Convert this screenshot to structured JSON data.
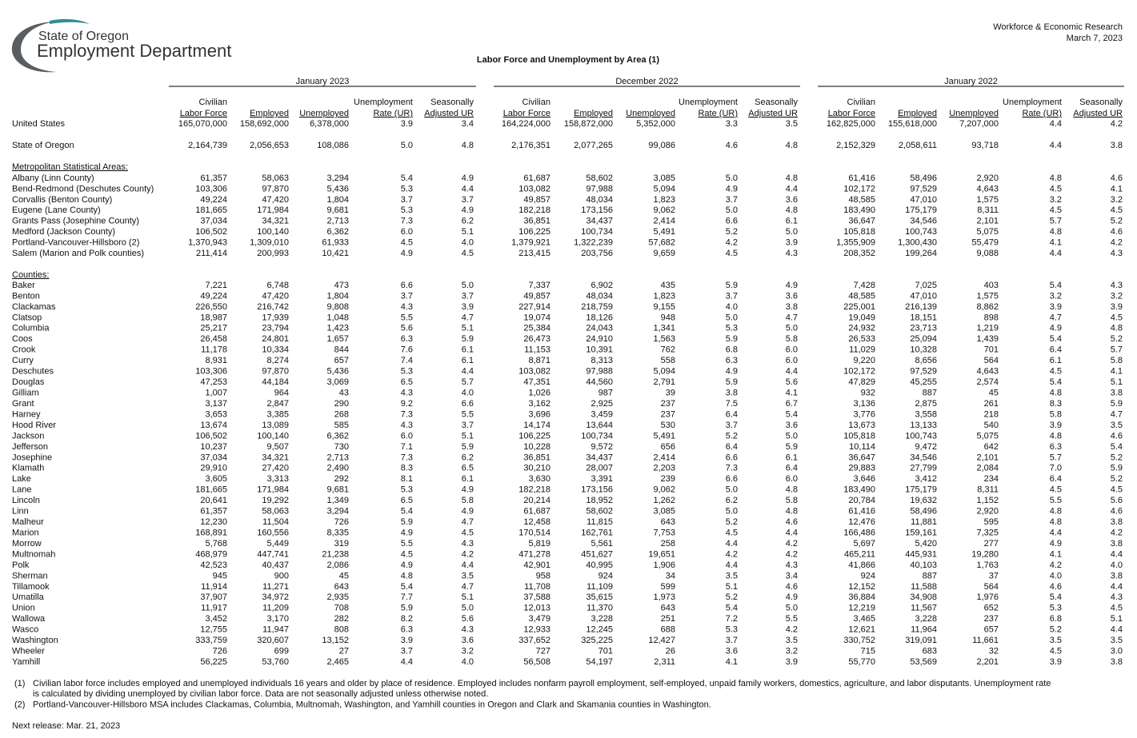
{
  "header": {
    "org_line1": "State of Oregon",
    "org_line2": "Employment Department",
    "right_line1": "Workforce & Economic Research",
    "right_line2": "March 7, 2023",
    "title": "Labor Force and Unemployment by Area (1)"
  },
  "table": {
    "periods": [
      "January 2023",
      "December 2022",
      "January 2022"
    ],
    "columns": [
      {
        "line1": "Civilian",
        "line2": "Labor Force"
      },
      {
        "line2": "Employed"
      },
      {
        "line2": "Unemployed"
      },
      {
        "line1": "Unemployment",
        "line2": "Rate (UR)"
      },
      {
        "line1": "Seasonally",
        "line2": "Adjusted UR"
      }
    ],
    "rows": [
      {
        "name": "United States",
        "cells": [
          "165,070,000",
          "158,692,000",
          "6,378,000",
          "3.9",
          "3.4",
          "164,224,000",
          "158,872,000",
          "5,352,000",
          "3.3",
          "3.5",
          "162,825,000",
          "155,618,000",
          "7,207,000",
          "4.4",
          "4.2"
        ]
      },
      {
        "name": "State of Oregon",
        "cells": [
          "2,164,739",
          "2,056,653",
          "108,086",
          "5.0",
          "4.8",
          "2,176,351",
          "2,077,265",
          "99,086",
          "4.6",
          "4.8",
          "2,152,329",
          "2,058,611",
          "93,718",
          "4.4",
          "3.8"
        ]
      }
    ],
    "msa": {
      "heading": "Metropolitan Statistical Areas:",
      "rows": [
        {
          "name": "Albany (Linn County)",
          "cells": [
            "61,357",
            "58,063",
            "3,294",
            "5.4",
            "4.9",
            "61,687",
            "58,602",
            "3,085",
            "5.0",
            "4.8",
            "61,416",
            "58,496",
            "2,920",
            "4.8",
            "4.6"
          ]
        },
        {
          "name": "Bend-Redmond (Deschutes County)",
          "cells": [
            "103,306",
            "97,870",
            "5,436",
            "5.3",
            "4.4",
            "103,082",
            "97,988",
            "5,094",
            "4.9",
            "4.4",
            "102,172",
            "97,529",
            "4,643",
            "4.5",
            "4.1"
          ]
        },
        {
          "name": "Corvallis (Benton County)",
          "cells": [
            "49,224",
            "47,420",
            "1,804",
            "3.7",
            "3.7",
            "49,857",
            "48,034",
            "1,823",
            "3.7",
            "3.6",
            "48,585",
            "47,010",
            "1,575",
            "3.2",
            "3.2"
          ]
        },
        {
          "name": "Eugene (Lane County)",
          "cells": [
            "181,665",
            "171,984",
            "9,681",
            "5.3",
            "4.9",
            "182,218",
            "173,156",
            "9,062",
            "5.0",
            "4.8",
            "183,490",
            "175,179",
            "8,311",
            "4.5",
            "4.5"
          ]
        },
        {
          "name": "Grants Pass (Josephine County)",
          "cells": [
            "37,034",
            "34,321",
            "2,713",
            "7.3",
            "6.2",
            "36,851",
            "34,437",
            "2,414",
            "6.6",
            "6.1",
            "36,647",
            "34,546",
            "2,101",
            "5.7",
            "5.2"
          ]
        },
        {
          "name": "Medford (Jackson County)",
          "cells": [
            "106,502",
            "100,140",
            "6,362",
            "6.0",
            "5.1",
            "106,225",
            "100,734",
            "5,491",
            "5.2",
            "5.0",
            "105,818",
            "100,743",
            "5,075",
            "4.8",
            "4.6"
          ]
        },
        {
          "name": "Portland-Vancouver-Hillsboro (2)",
          "cells": [
            "1,370,943",
            "1,309,010",
            "61,933",
            "4.5",
            "4.0",
            "1,379,921",
            "1,322,239",
            "57,682",
            "4.2",
            "3.9",
            "1,355,909",
            "1,300,430",
            "55,479",
            "4.1",
            "4.2"
          ]
        },
        {
          "name": "Salem (Marion and Polk counties)",
          "cells": [
            "211,414",
            "200,993",
            "10,421",
            "4.9",
            "4.5",
            "213,415",
            "203,756",
            "9,659",
            "4.5",
            "4.3",
            "208,352",
            "199,264",
            "9,088",
            "4.4",
            "4.3"
          ]
        }
      ]
    },
    "counties": {
      "heading": "Counties:",
      "rows": [
        {
          "name": "Baker",
          "cells": [
            "7,221",
            "6,748",
            "473",
            "6.6",
            "5.0",
            "7,337",
            "6,902",
            "435",
            "5.9",
            "4.9",
            "7,428",
            "7,025",
            "403",
            "5.4",
            "4.3"
          ]
        },
        {
          "name": "Benton",
          "cells": [
            "49,224",
            "47,420",
            "1,804",
            "3.7",
            "3.7",
            "49,857",
            "48,034",
            "1,823",
            "3.7",
            "3.6",
            "48,585",
            "47,010",
            "1,575",
            "3.2",
            "3.2"
          ]
        },
        {
          "name": "Clackamas",
          "cells": [
            "226,550",
            "216,742",
            "9,808",
            "4.3",
            "3.9",
            "227,914",
            "218,759",
            "9,155",
            "4.0",
            "3.8",
            "225,001",
            "216,139",
            "8,862",
            "3.9",
            "3.9"
          ]
        },
        {
          "name": "Clatsop",
          "cells": [
            "18,987",
            "17,939",
            "1,048",
            "5.5",
            "4.7",
            "19,074",
            "18,126",
            "948",
            "5.0",
            "4.7",
            "19,049",
            "18,151",
            "898",
            "4.7",
            "4.5"
          ]
        },
        {
          "name": "Columbia",
          "cells": [
            "25,217",
            "23,794",
            "1,423",
            "5.6",
            "5.1",
            "25,384",
            "24,043",
            "1,341",
            "5.3",
            "5.0",
            "24,932",
            "23,713",
            "1,219",
            "4.9",
            "4.8"
          ]
        },
        {
          "name": "Coos",
          "cells": [
            "26,458",
            "24,801",
            "1,657",
            "6.3",
            "5.9",
            "26,473",
            "24,910",
            "1,563",
            "5.9",
            "5.8",
            "26,533",
            "25,094",
            "1,439",
            "5.4",
            "5.2"
          ]
        },
        {
          "name": "Crook",
          "cells": [
            "11,178",
            "10,334",
            "844",
            "7.6",
            "6.1",
            "11,153",
            "10,391",
            "762",
            "6.8",
            "6.0",
            "11,029",
            "10,328",
            "701",
            "6.4",
            "5.7"
          ]
        },
        {
          "name": "Curry",
          "cells": [
            "8,931",
            "8,274",
            "657",
            "7.4",
            "6.1",
            "8,871",
            "8,313",
            "558",
            "6.3",
            "6.0",
            "9,220",
            "8,656",
            "564",
            "6.1",
            "5.8"
          ]
        },
        {
          "name": "Deschutes",
          "cells": [
            "103,306",
            "97,870",
            "5,436",
            "5.3",
            "4.4",
            "103,082",
            "97,988",
            "5,094",
            "4.9",
            "4.4",
            "102,172",
            "97,529",
            "4,643",
            "4.5",
            "4.1"
          ]
        },
        {
          "name": "Douglas",
          "cells": [
            "47,253",
            "44,184",
            "3,069",
            "6.5",
            "5.7",
            "47,351",
            "44,560",
            "2,791",
            "5.9",
            "5.6",
            "47,829",
            "45,255",
            "2,574",
            "5.4",
            "5.1"
          ]
        },
        {
          "name": "Gilliam",
          "cells": [
            "1,007",
            "964",
            "43",
            "4.3",
            "4.0",
            "1,026",
            "987",
            "39",
            "3.8",
            "4.1",
            "932",
            "887",
            "45",
            "4.8",
            "3.8"
          ]
        },
        {
          "name": "Grant",
          "cells": [
            "3,137",
            "2,847",
            "290",
            "9.2",
            "6.6",
            "3,162",
            "2,925",
            "237",
            "7.5",
            "6.7",
            "3,136",
            "2,875",
            "261",
            "8.3",
            "5.9"
          ]
        },
        {
          "name": "Harney",
          "cells": [
            "3,653",
            "3,385",
            "268",
            "7.3",
            "5.5",
            "3,696",
            "3,459",
            "237",
            "6.4",
            "5.4",
            "3,776",
            "3,558",
            "218",
            "5.8",
            "4.7"
          ]
        },
        {
          "name": "Hood River",
          "cells": [
            "13,674",
            "13,089",
            "585",
            "4.3",
            "3.7",
            "14,174",
            "13,644",
            "530",
            "3.7",
            "3.6",
            "13,673",
            "13,133",
            "540",
            "3.9",
            "3.5"
          ]
        },
        {
          "name": "Jackson",
          "cells": [
            "106,502",
            "100,140",
            "6,362",
            "6.0",
            "5.1",
            "106,225",
            "100,734",
            "5,491",
            "5.2",
            "5.0",
            "105,818",
            "100,743",
            "5,075",
            "4.8",
            "4.6"
          ]
        },
        {
          "name": "Jefferson",
          "cells": [
            "10,237",
            "9,507",
            "730",
            "7.1",
            "5.9",
            "10,228",
            "9,572",
            "656",
            "6.4",
            "5.9",
            "10,114",
            "9,472",
            "642",
            "6.3",
            "5.4"
          ]
        },
        {
          "name": "Josephine",
          "cells": [
            "37,034",
            "34,321",
            "2,713",
            "7.3",
            "6.2",
            "36,851",
            "34,437",
            "2,414",
            "6.6",
            "6.1",
            "36,647",
            "34,546",
            "2,101",
            "5.7",
            "5.2"
          ]
        },
        {
          "name": "Klamath",
          "cells": [
            "29,910",
            "27,420",
            "2,490",
            "8.3",
            "6.5",
            "30,210",
            "28,007",
            "2,203",
            "7.3",
            "6.4",
            "29,883",
            "27,799",
            "2,084",
            "7.0",
            "5.9"
          ]
        },
        {
          "name": "Lake",
          "cells": [
            "3,605",
            "3,313",
            "292",
            "8.1",
            "6.1",
            "3,630",
            "3,391",
            "239",
            "6.6",
            "6.0",
            "3,646",
            "3,412",
            "234",
            "6.4",
            "5.2"
          ]
        },
        {
          "name": "Lane",
          "cells": [
            "181,665",
            "171,984",
            "9,681",
            "5.3",
            "4.9",
            "182,218",
            "173,156",
            "9,062",
            "5.0",
            "4.8",
            "183,490",
            "175,179",
            "8,311",
            "4.5",
            "4.5"
          ]
        },
        {
          "name": "Lincoln",
          "cells": [
            "20,641",
            "19,292",
            "1,349",
            "6.5",
            "5.8",
            "20,214",
            "18,952",
            "1,262",
            "6.2",
            "5.8",
            "20,784",
            "19,632",
            "1,152",
            "5.5",
            "5.6"
          ]
        },
        {
          "name": "Linn",
          "cells": [
            "61,357",
            "58,063",
            "3,294",
            "5.4",
            "4.9",
            "61,687",
            "58,602",
            "3,085",
            "5.0",
            "4.8",
            "61,416",
            "58,496",
            "2,920",
            "4.8",
            "4.6"
          ]
        },
        {
          "name": "Malheur",
          "cells": [
            "12,230",
            "11,504",
            "726",
            "5.9",
            "4.7",
            "12,458",
            "11,815",
            "643",
            "5.2",
            "4.6",
            "12,476",
            "11,881",
            "595",
            "4.8",
            "3.8"
          ]
        },
        {
          "name": "Marion",
          "cells": [
            "168,891",
            "160,556",
            "8,335",
            "4.9",
            "4.5",
            "170,514",
            "162,761",
            "7,753",
            "4.5",
            "4.4",
            "166,486",
            "159,161",
            "7,325",
            "4.4",
            "4.2"
          ]
        },
        {
          "name": "Morrow",
          "cells": [
            "5,768",
            "5,449",
            "319",
            "5.5",
            "4.3",
            "5,819",
            "5,561",
            "258",
            "4.4",
            "4.2",
            "5,697",
            "5,420",
            "277",
            "4.9",
            "3.8"
          ]
        },
        {
          "name": "Multnomah",
          "cells": [
            "468,979",
            "447,741",
            "21,238",
            "4.5",
            "4.2",
            "471,278",
            "451,627",
            "19,651",
            "4.2",
            "4.2",
            "465,211",
            "445,931",
            "19,280",
            "4.1",
            "4.4"
          ]
        },
        {
          "name": "Polk",
          "cells": [
            "42,523",
            "40,437",
            "2,086",
            "4.9",
            "4.4",
            "42,901",
            "40,995",
            "1,906",
            "4.4",
            "4.3",
            "41,866",
            "40,103",
            "1,763",
            "4.2",
            "4.0"
          ]
        },
        {
          "name": "Sherman",
          "cells": [
            "945",
            "900",
            "45",
            "4.8",
            "3.5",
            "958",
            "924",
            "34",
            "3.5",
            "3.4",
            "924",
            "887",
            "37",
            "4.0",
            "3.8"
          ]
        },
        {
          "name": "Tillamook",
          "cells": [
            "11,914",
            "11,271",
            "643",
            "5.4",
            "4.7",
            "11,708",
            "11,109",
            "599",
            "5.1",
            "4.6",
            "12,152",
            "11,588",
            "564",
            "4.6",
            "4.4"
          ]
        },
        {
          "name": "Umatilla",
          "cells": [
            "37,907",
            "34,972",
            "2,935",
            "7.7",
            "5.1",
            "37,588",
            "35,615",
            "1,973",
            "5.2",
            "4.9",
            "36,884",
            "34,908",
            "1,976",
            "5.4",
            "4.3"
          ]
        },
        {
          "name": "Union",
          "cells": [
            "11,917",
            "11,209",
            "708",
            "5.9",
            "5.0",
            "12,013",
            "11,370",
            "643",
            "5.4",
            "5.0",
            "12,219",
            "11,567",
            "652",
            "5.3",
            "4.5"
          ]
        },
        {
          "name": "Wallowa",
          "cells": [
            "3,452",
            "3,170",
            "282",
            "8.2",
            "5.6",
            "3,479",
            "3,228",
            "251",
            "7.2",
            "5.5",
            "3,465",
            "3,228",
            "237",
            "6.8",
            "5.1"
          ]
        },
        {
          "name": "Wasco",
          "cells": [
            "12,755",
            "11,947",
            "808",
            "6.3",
            "4.3",
            "12,933",
            "12,245",
            "688",
            "5.3",
            "4.2",
            "12,621",
            "11,964",
            "657",
            "5.2",
            "4.4"
          ]
        },
        {
          "name": "Washington",
          "cells": [
            "333,759",
            "320,607",
            "13,152",
            "3.9",
            "3.6",
            "337,652",
            "325,225",
            "12,427",
            "3.7",
            "3.5",
            "330,752",
            "319,091",
            "11,661",
            "3.5",
            "3.5"
          ]
        },
        {
          "name": "Wheeler",
          "cells": [
            "726",
            "699",
            "27",
            "3.7",
            "3.2",
            "727",
            "701",
            "26",
            "3.6",
            "3.2",
            "715",
            "683",
            "32",
            "4.5",
            "3.0"
          ]
        },
        {
          "name": "Yamhill",
          "cells": [
            "56,225",
            "53,760",
            "2,465",
            "4.4",
            "4.0",
            "56,508",
            "54,197",
            "2,311",
            "4.1",
            "3.9",
            "55,770",
            "53,569",
            "2,201",
            "3.9",
            "3.8"
          ]
        }
      ]
    }
  },
  "footnotes": [
    {
      "marker": "(1)",
      "lines": [
        "Civilian labor force includes employed and unemployed individuals 16 years and older by place of residence. Employed includes nonfarm payroll employment, self-employed, unpaid family workers, domestics, agriculture, and labor disputants. Unemployment rate",
        "is calculated by dividing unemployed by civilian labor force. Data are not seasonally adjusted unless otherwise noted."
      ]
    },
    {
      "marker": "(2)",
      "lines": [
        "Portland-Vancouver-Hillsboro MSA includes Clackamas, Columbia, Multnomah, Washington, and Yamhill counties in Oregon and Clark and Skamania counties in Washington."
      ]
    }
  ],
  "next_release": "Next release: Mar. 21, 2023"
}
